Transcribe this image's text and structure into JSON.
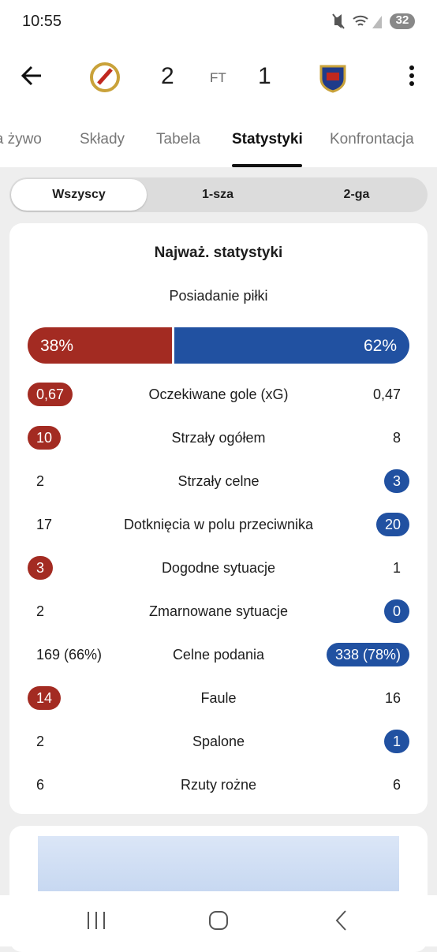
{
  "status_bar": {
    "time": "10:55",
    "battery": 32
  },
  "header": {
    "home_score": 2,
    "status": "FT",
    "away_score": 1
  },
  "tabs": [
    "Na żywo",
    "Składy",
    "Tabela",
    "Statystyki",
    "Konfrontacja"
  ],
  "active_tab": 3,
  "periods": [
    "Wszyscy",
    "1-sza",
    "2-ga"
  ],
  "active_period": 0,
  "card": {
    "title": "Najważ. statystyki",
    "possession": {
      "label": "Posiadanie piłki",
      "values": [
        38,
        62
      ],
      "value_labels": [
        "38%",
        "62%"
      ],
      "colors": [
        "#a32b22",
        "#2151a1"
      ]
    },
    "rows": [
      {
        "name": "Oczekiwane gole (xG)",
        "home": "0,67",
        "away": "0,47",
        "highlight": "home"
      },
      {
        "name": "Strzały ogółem",
        "home": "10",
        "away": "8",
        "highlight": "home"
      },
      {
        "name": "Strzały celne",
        "home": "2",
        "away": "3",
        "highlight": "away"
      },
      {
        "name": "Dotknięcia w polu przeciwnika",
        "home": "17",
        "away": "20",
        "highlight": "away"
      },
      {
        "name": "Dogodne sytuacje",
        "home": "3",
        "away": "1",
        "highlight": "home"
      },
      {
        "name": "Zmarnowane sytuacje",
        "home": "2",
        "away": "0",
        "highlight": "away"
      },
      {
        "name": "Celne podania",
        "home": "169 (66%)",
        "away": "338 (78%)",
        "highlight": "away"
      },
      {
        "name": "Faule",
        "home": "14",
        "away": "16",
        "highlight": "home"
      },
      {
        "name": "Spalone",
        "home": "2",
        "away": "1",
        "highlight": "away"
      },
      {
        "name": "Rzuty rożne",
        "home": "6",
        "away": "6",
        "highlight": null
      }
    ]
  }
}
